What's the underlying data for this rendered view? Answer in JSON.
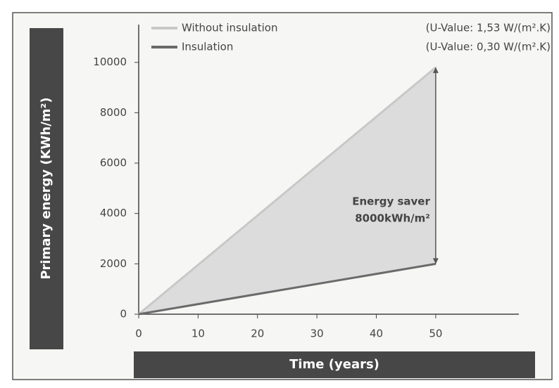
{
  "chart_data": {
    "type": "line",
    "y_label": "Primary energy (KWh/m²)",
    "x_label": "Time (years)",
    "x": [
      0,
      50
    ],
    "series": [
      {
        "name": "Without insulation",
        "note": "(U-Value: 1,53 W/(m².K)",
        "color": "#c8c8c8",
        "values": [
          0,
          9800
        ]
      },
      {
        "name": "Insulation",
        "note": "(U-Value: 0,30 W/(m².K)",
        "color": "#6a6a6a",
        "values": [
          0,
          2000
        ]
      }
    ],
    "fill_between": true,
    "fill_color": "#dcdcdc",
    "annotation": {
      "lines": [
        "Energy saver",
        "8000kWh/m²"
      ],
      "x": 50
    },
    "xlim": [
      0,
      64
    ],
    "xticks": [
      0,
      10,
      20,
      30,
      40,
      50
    ],
    "ylim": [
      0,
      11500
    ],
    "yticks": [
      0,
      2000,
      4000,
      6000,
      8000,
      10000
    ],
    "grid": false
  }
}
